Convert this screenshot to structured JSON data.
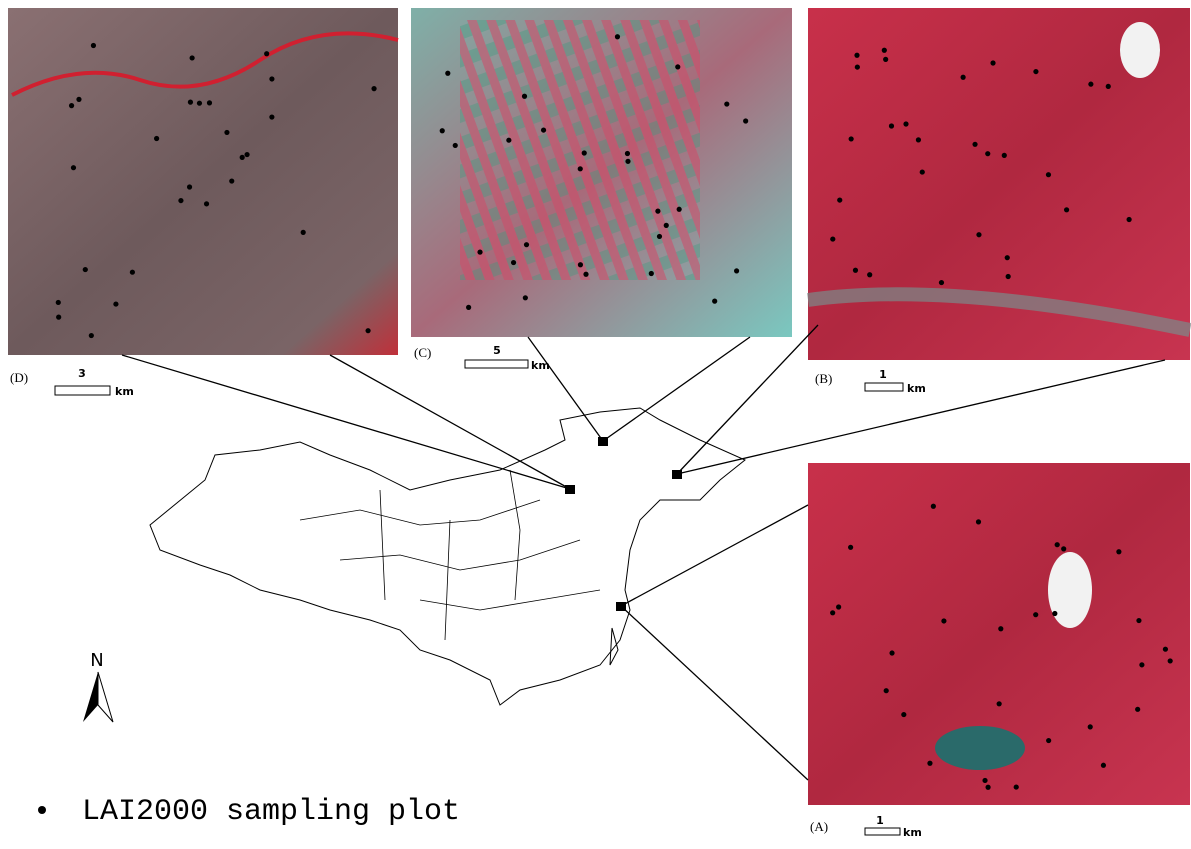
{
  "panels": [
    {
      "label": "(D)",
      "scale_value": "3",
      "scale_unit": "km"
    },
    {
      "label": "(C)",
      "scale_value": "5",
      "scale_unit": "km"
    },
    {
      "label": "(B)",
      "scale_value": "1",
      "scale_unit": "km"
    },
    {
      "label": "(A)",
      "scale_value": "1",
      "scale_unit": "km"
    }
  ],
  "north": "N",
  "legend": "LAI2000 sampling plot"
}
